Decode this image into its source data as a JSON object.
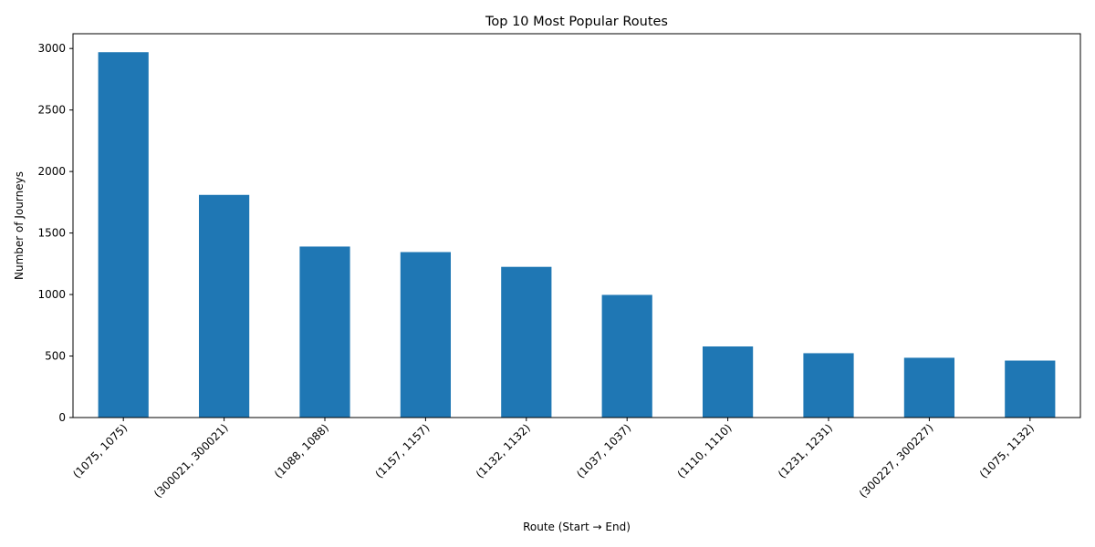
{
  "chart_data": {
    "type": "bar",
    "title": "Top 10 Most Popular Routes",
    "xlabel": "Route (Start → End)",
    "ylabel": "Number of Journeys",
    "categories": [
      "(1075, 1075)",
      "(300021, 300021)",
      "(1088, 1088)",
      "(1157, 1157)",
      "(1132, 1132)",
      "(1037, 1037)",
      "(1110, 1110)",
      "(1231, 1231)",
      "(300227, 300227)",
      "(1075, 1132)"
    ],
    "values": [
      2970,
      1810,
      1390,
      1345,
      1225,
      997,
      578,
      523,
      486,
      463
    ],
    "ylim": [
      0,
      3120
    ],
    "yticks": [
      0,
      500,
      1000,
      1500,
      2000,
      2500,
      3000
    ],
    "grid": false,
    "legend": "none",
    "bar_color": "#1f77b4"
  }
}
